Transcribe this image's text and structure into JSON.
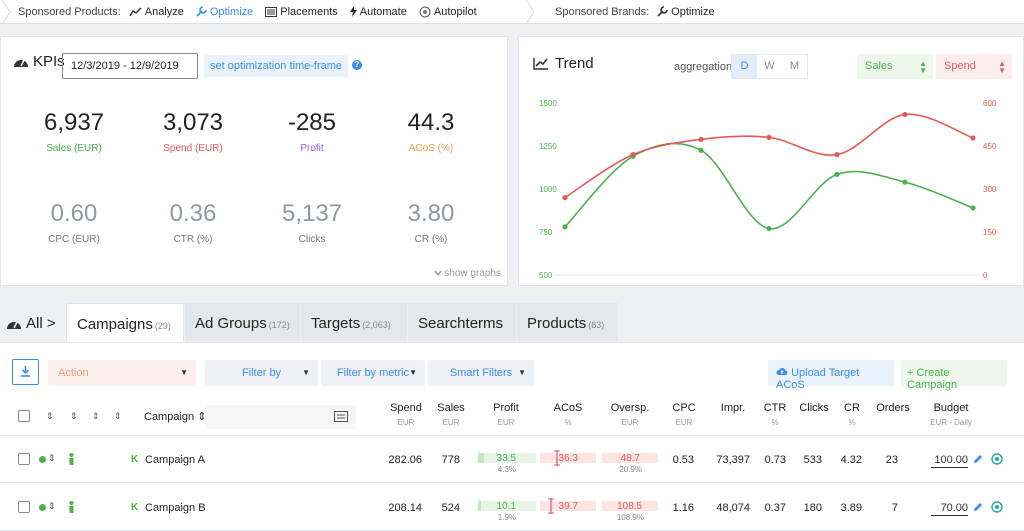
{
  "nav": {
    "sp_label": "Sponsored Products:",
    "sp_items": [
      {
        "label": "Analyze",
        "icon": "chart-line-icon",
        "active": false
      },
      {
        "label": "Optimize",
        "icon": "wrench-icon",
        "active": true
      },
      {
        "label": "Placements",
        "icon": "placements-icon",
        "active": false
      },
      {
        "label": "Automate",
        "icon": "bolt-icon",
        "active": false
      },
      {
        "label": "Autopilot",
        "icon": "autopilot-icon",
        "active": false
      }
    ],
    "sb_label": "Sponsored Brands:",
    "sb_items": [
      {
        "label": "Optimize",
        "icon": "wrench-icon"
      }
    ]
  },
  "kpis": {
    "title": "KPIs",
    "date_range": "12/3/2019 - 12/9/2019",
    "timeframe_button": "set optimization time-frame",
    "help": "?",
    "cards": [
      {
        "value": "6,937",
        "label": "Sales (EUR)",
        "color": "#4caf50"
      },
      {
        "value": "3,073",
        "label": "Spend (EUR)",
        "color": "#e05b56"
      },
      {
        "value": "-285",
        "label": "Profit",
        "color": "#a45ee5"
      },
      {
        "value": "44.3",
        "label": "ACoS (%)",
        "color": "#f0a04b"
      },
      {
        "value": "0.60",
        "label": "CPC (EUR)",
        "color": "#777777"
      },
      {
        "value": "0.36",
        "label": "CTR (%)",
        "color": "#777777"
      },
      {
        "value": "5,137",
        "label": "Clicks",
        "color": "#777777"
      },
      {
        "value": "3.80",
        "label": "CR (%)",
        "color": "#777777"
      }
    ],
    "show_graphs": "show graphs"
  },
  "trend": {
    "title": "Trend",
    "aggregation_label": "aggregation",
    "aggregation_options": [
      "D",
      "W",
      "M"
    ],
    "aggregation_selected": "D",
    "left_metric": "Sales",
    "right_metric": "Spend"
  },
  "chart_data": {
    "type": "line",
    "x": [
      1,
      2,
      3,
      4,
      5,
      6,
      7
    ],
    "y_left_ticks": [
      "1500",
      "1250",
      "1000",
      "750",
      "500"
    ],
    "y_left_range": [
      500,
      1500
    ],
    "y_right_ticks": [
      "600",
      "450",
      "300",
      "150",
      "0"
    ],
    "y_right_range": [
      0,
      600
    ],
    "series": [
      {
        "name": "Sales",
        "axis": "left",
        "color": "#4caf50",
        "values": [
          780,
          1190,
          1225,
          770,
          1085,
          1040,
          890
        ]
      },
      {
        "name": "Spend",
        "axis": "right",
        "color": "#e05b56",
        "values": [
          270,
          420,
          473,
          480,
          420,
          560,
          478
        ]
      }
    ],
    "grid": false
  },
  "tabs": {
    "all_label": "All >",
    "items": [
      {
        "label": "Campaigns",
        "count": "(29)",
        "active": true
      },
      {
        "label": "Ad Groups",
        "count": "(172)",
        "active": false
      },
      {
        "label": "Targets",
        "count": "(2,063)",
        "active": false
      },
      {
        "label": "Searchterms",
        "count": "",
        "active": false
      },
      {
        "label": "Products",
        "count": "(83)",
        "active": false
      }
    ]
  },
  "toolbar": {
    "action": "Action",
    "filter_by": "Filter by",
    "filter_by_metric": "Filter by metric",
    "smart_filters": "Smart Filters",
    "upload": "Upload Target ACoS",
    "create": "+ Create Campaign"
  },
  "table": {
    "campaign_header": "Campaign",
    "columns": [
      {
        "label": "Spend",
        "sub": "EUR"
      },
      {
        "label": "Sales",
        "sub": "EUR"
      },
      {
        "label": "Profit",
        "sub": "EUR"
      },
      {
        "label": "ACoS",
        "sub": "%"
      },
      {
        "label": "Oversp.",
        "sub": "EUR"
      },
      {
        "label": "CPC",
        "sub": "EUR"
      },
      {
        "label": "Impr.",
        "sub": ""
      },
      {
        "label": "CTR",
        "sub": "%"
      },
      {
        "label": "Clicks",
        "sub": ""
      },
      {
        "label": "CR",
        "sub": "%"
      },
      {
        "label": "Orders",
        "sub": ""
      },
      {
        "label": "Budget",
        "sub": "EUR - Daily"
      }
    ],
    "rows": [
      {
        "type": "K",
        "name": "Campaign A",
        "spend": "282.06",
        "sales": "778",
        "profit": "33.5",
        "profit_pct": "4.3%",
        "acos": "36.3",
        "oversp": "48.7",
        "oversp_pct": "20.9%",
        "cpc": "0.53",
        "impr": "73,397",
        "ctr": "0.73",
        "clicks": "533",
        "cr": "4.32",
        "orders": "23",
        "budget": "100.00"
      },
      {
        "type": "K",
        "name": "Campaign B",
        "spend": "208.14",
        "sales": "524",
        "profit": "10.1",
        "profit_pct": "1.9%",
        "acos": "39.7",
        "oversp": "108.5",
        "oversp_pct": "108.9%",
        "cpc": "1.16",
        "impr": "48,074",
        "ctr": "0.37",
        "clicks": "180",
        "cr": "3.89",
        "orders": "7",
        "budget": "70.00"
      }
    ]
  }
}
